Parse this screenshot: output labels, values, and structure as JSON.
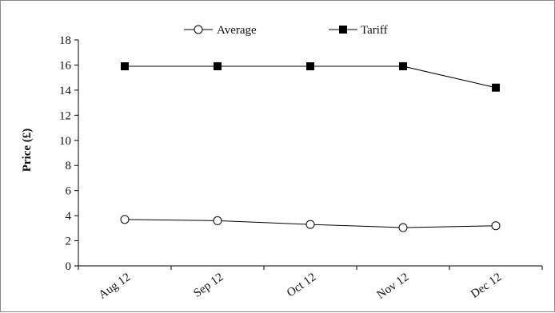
{
  "chart_data": {
    "type": "line",
    "title": "",
    "xlabel": "",
    "ylabel": "Price (£)",
    "categories": [
      "Aug 12",
      "Sep 12",
      "Oct 12",
      "Nov 12",
      "Dec 12"
    ],
    "ylim": [
      0,
      18
    ],
    "yticks": [
      "0",
      "2",
      "4",
      "6",
      "8",
      "10",
      "12",
      "14",
      "16",
      "18"
    ],
    "grid": false,
    "legend_position": "top",
    "series": [
      {
        "name": "Average",
        "values": [
          3.7,
          3.6,
          3.3,
          3.05,
          3.2
        ],
        "marker": "open-circle",
        "color": "#000000"
      },
      {
        "name": "Tariff",
        "values": [
          15.9,
          15.9,
          15.9,
          15.9,
          14.2
        ],
        "marker": "filled-square",
        "color": "#000000"
      }
    ]
  }
}
